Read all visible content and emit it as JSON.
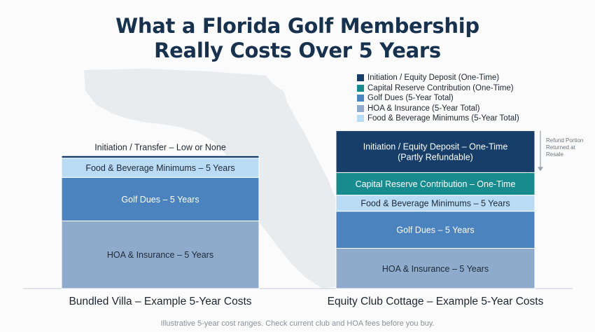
{
  "title": {
    "line1": "What a Florida Golf Membership",
    "line2": "Really Costs Over 5 Years"
  },
  "colors": {
    "initiation": "#163e69",
    "capital_reserve": "#178b8e",
    "golf_dues": "#4b83bf",
    "hoa_insurance": "#8fabcb",
    "food_beverage": "#b9dbf4",
    "baseline": "#d8dde3",
    "map": "#e9ecef"
  },
  "legend": [
    {
      "label": "Initiation / Equity Deposit (One-Time)",
      "color": "#163e69"
    },
    {
      "label": "Capital Reserve Contribution (One-Time)",
      "color": "#178b8e"
    },
    {
      "label": "Golf Dues (5-Year Total)",
      "color": "#4b83bf"
    },
    {
      "label": "HOA & Insurance (5-Year Total)",
      "color": "#8fabcb"
    },
    {
      "label": "Food & Beverage Minimums (5-Year Total)",
      "color": "#b9dbf4"
    }
  ],
  "note": {
    "lines": [
      "Refund Portion",
      "Returned at",
      "Resale"
    ]
  },
  "footer": "Illustrative 5-year cost ranges. Check current club and HOA fees before you buy.",
  "chart_data": {
    "type": "bar",
    "stacked": true,
    "title": "What a Florida Golf Membership Really Costs Over 5 Years",
    "ylim": [
      0,
      100
    ],
    "ylabel": "",
    "xlabel": "",
    "grid": false,
    "legend_position": "top-right",
    "categories": [
      "Bundled Villa – Example 5-Year Costs",
      "Equity Club Cottage – Example 5-Year Costs"
    ],
    "stack_order": [
      "HOA & Insurance",
      "Golf Dues",
      "Food & Beverage Minimums",
      "Capital Reserve Contribution",
      "Initiation / Equity Deposit"
    ],
    "series": [
      {
        "name": "HOA & Insurance",
        "color": "#8fabcb",
        "values": [
          42,
          25
        ],
        "labels": [
          [
            "HOA & Insurance – 5 Years"
          ],
          [
            "HOA & Insurance – 5 Years"
          ]
        ]
      },
      {
        "name": "Golf Dues",
        "color": "#4b83bf",
        "values": [
          27,
          23
        ],
        "labels": [
          [
            "Golf Dues – 5 Years"
          ],
          [
            "Golf Dues – 5 Years"
          ]
        ]
      },
      {
        "name": "Food & Beverage Minimums",
        "color": "#b9dbf4",
        "values": [
          12,
          10
        ],
        "labels": [
          [
            "Food & Beverage Minimums – 5 Years"
          ],
          [
            "Food & Beverage Minimums – 5 Years"
          ]
        ]
      },
      {
        "name": "Capital Reserve Contribution",
        "color": "#178b8e",
        "values": [
          0,
          14
        ],
        "labels": [
          [],
          [
            "Capital Reserve Contribution – One-Time"
          ]
        ]
      },
      {
        "name": "Initiation / Equity Deposit",
        "color": "#163e69",
        "values": [
          1.5,
          26
        ],
        "labels": [
          [],
          [
            "Initiation / Equity Deposit – One-Time",
            "(Partly Refundable)"
          ]
        ]
      }
    ],
    "annotations": [
      {
        "category": 0,
        "text": "Initiation / Transfer – Low or None",
        "position": "above-bar"
      },
      {
        "category": 1,
        "text": "Refund Portion Returned at Resale",
        "position": "right",
        "arrow": "down"
      }
    ]
  }
}
